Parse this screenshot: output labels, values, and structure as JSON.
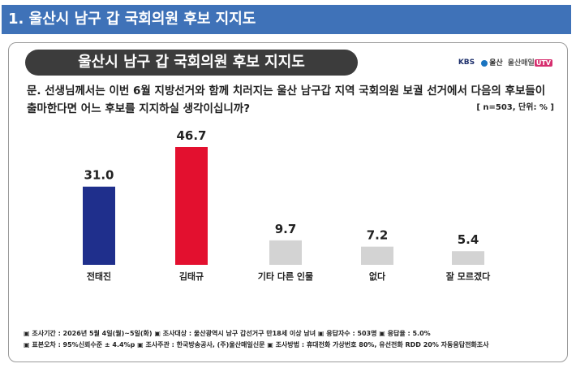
{
  "header": {
    "section_title": "1. 울산시 남구 갑 국회의원 후보 지지도"
  },
  "card": {
    "title": "울산시 남구 갑 국회의원 후보 지지도",
    "brand": {
      "kbs": "KBS",
      "ulsan": "울산",
      "news": "울산매일",
      "tv": "UTV"
    },
    "question": "문. 선생님께서는 이번 6월 지방선거와 함께 치러지는 울산 남구갑 지역 국회의원 보궐 선거에서 다음의 후보들이 출마한다면 어느 후보를 지지하실 생각이십니까?",
    "sample_note": "[ n=503, 단위: % ]",
    "footnotes": [
      "▣ 조사기간 : 2026년 5월 4일(월)~5일(화) ▣ 조사대상 : 울산광역시 남구 갑선거구 만18세 이상 남녀 ▣ 응답자수 : 503명 ▣ 응답율 : 5.0%",
      "▣ 표본오차 : 95%신뢰수준 ± 4.4%p ▣ 조사주관 : 한국방송공사, (주)울산매일신문 ▣ 조사방법 : 휴대전화 가상번호 80%, 유선전화 RDD 20% 자동응답전화조사"
    ]
  },
  "chart_data": {
    "type": "bar",
    "categories": [
      "전태진",
      "김태규",
      "기타 다른 인물",
      "없다",
      "잘 모르겠다"
    ],
    "values": [
      31.0,
      46.7,
      9.7,
      7.2,
      5.4
    ],
    "colors": [
      "#1f2f8c",
      "#e3102f",
      "#d3d3d3",
      "#d3d3d3",
      "#d3d3d3"
    ],
    "value_labels": [
      "31.0",
      "46.7",
      "9.7",
      "7.2",
      "5.4"
    ],
    "ylim": [
      0,
      50
    ],
    "grid": false
  }
}
